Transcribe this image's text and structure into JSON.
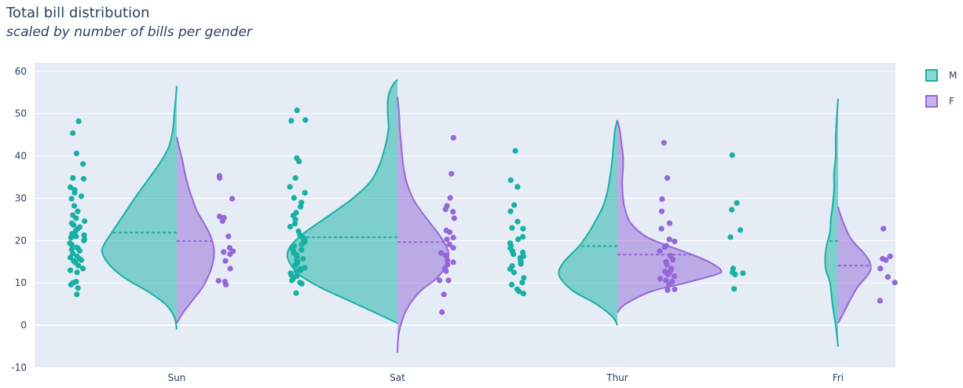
{
  "title": "Total bill distribution",
  "subtitle": "scaled by number of bills per gender",
  "colors": {
    "M": "#17b0a3",
    "F": "#9467d8",
    "plot_bg": "#e5ecf6",
    "grid": "#ffffff"
  },
  "chart_data": {
    "type": "violin",
    "title": "Total bill distribution",
    "subtitle": "scaled by number of bills per gender",
    "xlabel": "",
    "ylabel": "",
    "categories": [
      "Sun",
      "Sat",
      "Thur",
      "Fri"
    ],
    "ylim": [
      -10,
      62
    ],
    "yticks": [
      -10,
      0,
      10,
      20,
      30,
      40,
      50,
      60
    ],
    "grid": true,
    "legend": {
      "placement": "top-right",
      "entries": [
        "M",
        "F"
      ]
    },
    "series": [
      {
        "name": "M",
        "side": "negative",
        "means": [
          21.9,
          20.8,
          18.7,
          19.9
        ],
        "violins": [
          {
            "ymin": -1,
            "ymax": 56.5,
            "density": [
              [
                -1,
                0
              ],
              [
                2,
                3
              ],
              [
                5,
                14
              ],
              [
                8,
                36
              ],
              [
                11,
                63
              ],
              [
                14,
                82
              ],
              [
                17,
                92
              ],
              [
                19,
                90
              ],
              [
                22,
                80
              ],
              [
                26,
                66
              ],
              [
                30,
                52
              ],
              [
                34,
                37
              ],
              [
                38,
                22
              ],
              [
                42,
                10
              ],
              [
                46,
                5
              ],
              [
                50,
                3
              ],
              [
                54,
                1
              ],
              [
                56.5,
                0
              ]
            ]
          },
          {
            "ymin": 0.5,
            "ymax": 58,
            "density": [
              [
                0.5,
                0
              ],
              [
                3,
                28
              ],
              [
                6,
                62
              ],
              [
                9,
                96
              ],
              [
                12,
                122
              ],
              [
                15,
                134
              ],
              [
                17,
                136
              ],
              [
                19,
                131
              ],
              [
                22,
                114
              ],
              [
                26,
                84
              ],
              [
                30,
                55
              ],
              [
                34,
                33
              ],
              [
                38,
                22
              ],
              [
                41,
                17
              ],
              [
                44,
                13
              ],
              [
                47,
                11
              ],
              [
                50,
                12
              ],
              [
                53,
                12
              ],
              [
                55,
                10
              ],
              [
                57,
                5
              ],
              [
                58,
                0
              ]
            ]
          },
          {
            "ymin": 0,
            "ymax": 48.5,
            "density": [
              [
                0,
                0
              ],
              [
                2,
                6
              ],
              [
                5,
                26
              ],
              [
                8,
                54
              ],
              [
                11,
                70
              ],
              [
                13,
                72
              ],
              [
                15,
                66
              ],
              [
                17,
                56
              ],
              [
                19,
                46
              ],
              [
                22,
                35
              ],
              [
                25,
                26
              ],
              [
                28,
                18
              ],
              [
                31,
                13
              ],
              [
                34,
                10
              ],
              [
                38,
                7
              ],
              [
                42,
                5
              ],
              [
                46,
                3
              ],
              [
                48.5,
                0
              ]
            ]
          },
          {
            "ymin": -5,
            "ymax": 53.5,
            "density": [
              [
                -5,
                0
              ],
              [
                0,
                3
              ],
              [
                5,
                7
              ],
              [
                10,
                10
              ],
              [
                13,
                15
              ],
              [
                16,
                16
              ],
              [
                19,
                14
              ],
              [
                22,
                10
              ],
              [
                25,
                9
              ],
              [
                28,
                7
              ],
              [
                32,
                5
              ],
              [
                36,
                5
              ],
              [
                40,
                3
              ],
              [
                44,
                3
              ],
              [
                48,
                2
              ],
              [
                53.5,
                0
              ]
            ]
          }
        ],
        "points": [
          [
            7.3,
            8.8,
            9.6,
            10.0,
            10.3,
            12.5,
            13.0,
            13.4,
            14.1,
            14.8,
            15.2,
            15.4,
            15.7,
            16.0,
            16.3,
            17.0,
            17.6,
            17.9,
            18.2,
            18.4,
            19.0,
            19.4,
            20.0,
            20.3,
            20.7,
            21.0,
            21.3,
            21.6,
            22.3,
            22.8,
            23.2,
            23.7,
            24.1,
            24.6,
            25.3,
            26.0,
            26.9,
            28.2,
            29.9,
            30.5,
            31.3,
            32.0,
            32.6,
            34.6,
            34.8,
            38.1,
            40.6,
            45.4,
            48.2
          ],
          [
            7.6,
            9.8,
            10.1,
            10.6,
            11.1,
            11.6,
            11.9,
            12.3,
            12.7,
            13.0,
            13.3,
            13.6,
            14.1,
            14.6,
            15.0,
            15.4,
            15.7,
            16.1,
            16.6,
            17.0,
            17.5,
            17.8,
            18.3,
            18.7,
            19.1,
            19.5,
            19.9,
            20.3,
            20.6,
            21.0,
            21.4,
            22.2,
            23.3,
            24.0,
            25.0,
            25.9,
            26.6,
            28.0,
            29.0,
            30.1,
            31.3,
            32.7,
            34.8,
            38.7,
            39.5,
            48.3,
            48.5,
            50.8
          ],
          [
            7.5,
            8.0,
            8.5,
            9.6,
            10.1,
            11.2,
            12.5,
            13.3,
            14.0,
            14.5,
            15.1,
            15.9,
            16.3,
            16.8,
            17.2,
            17.5,
            18.2,
            18.8,
            19.4,
            20.3,
            20.9,
            22.8,
            23.0,
            24.5,
            26.9,
            28.4,
            32.7,
            34.3,
            41.2
          ],
          [
            8.6,
            12.0,
            12.3,
            12.5,
            13.4,
            20.8,
            22.5,
            27.3,
            28.9,
            40.2
          ]
        ]
      },
      {
        "name": "F",
        "side": "positive",
        "means": [
          19.9,
          19.7,
          16.7,
          14.1
        ],
        "violins": [
          {
            "ymin": 0.5,
            "ymax": 44.5,
            "density": [
              [
                0.5,
                0
              ],
              [
                3,
                8
              ],
              [
                6,
                20
              ],
              [
                9,
                32
              ],
              [
                12,
                40
              ],
              [
                15,
                45
              ],
              [
                18,
                46
              ],
              [
                21,
                42
              ],
              [
                24,
                34
              ],
              [
                27,
                25
              ],
              [
                30,
                19
              ],
              [
                33,
                14
              ],
              [
                36,
                10
              ],
              [
                39,
                7
              ],
              [
                42,
                3
              ],
              [
                44.5,
                0
              ]
            ]
          },
          {
            "ymin": -6.5,
            "ymax": 54,
            "density": [
              [
                -6.5,
                0
              ],
              [
                -3,
                1
              ],
              [
                0,
                4
              ],
              [
                4,
                12
              ],
              [
                8,
                28
              ],
              [
                11,
                48
              ],
              [
                14,
                60
              ],
              [
                16,
                63
              ],
              [
                18,
                62
              ],
              [
                21,
                53
              ],
              [
                24,
                41
              ],
              [
                27,
                29
              ],
              [
                30,
                19
              ],
              [
                34,
                11
              ],
              [
                38,
                7
              ],
              [
                42,
                5
              ],
              [
                46,
                3
              ],
              [
                50,
                2
              ],
              [
                54,
                0
              ]
            ]
          },
          {
            "ymin": 3,
            "ymax": 48.5,
            "density": [
              [
                3,
                0
              ],
              [
                5,
                10
              ],
              [
                8,
                42
              ],
              [
                10,
                84
              ],
              [
                12,
                122
              ],
              [
                13,
                128
              ],
              [
                15,
                113
              ],
              [
                17,
                88
              ],
              [
                19,
                59
              ],
              [
                21,
                35
              ],
              [
                24,
                17
              ],
              [
                27,
                10
              ],
              [
                30,
                7
              ],
              [
                34,
                6
              ],
              [
                37,
                7
              ],
              [
                40,
                7
              ],
              [
                43,
                5
              ],
              [
                46,
                3
              ],
              [
                48.5,
                0
              ]
            ]
          },
          {
            "ymin": 0.5,
            "ymax": 28,
            "density": [
              [
                0.5,
                0
              ],
              [
                3,
                7
              ],
              [
                6,
                15
              ],
              [
                9,
                24
              ],
              [
                11,
                33
              ],
              [
                13,
                40
              ],
              [
                15,
                39
              ],
              [
                17,
                32
              ],
              [
                19,
                22
              ],
              [
                21,
                14
              ],
              [
                24,
                7
              ],
              [
                26,
                3
              ],
              [
                28,
                0
              ]
            ]
          }
        ],
        "points": [
          [
            9.6,
            10.3,
            10.5,
            13.4,
            15.2,
            16.8,
            17.3,
            17.5,
            18.3,
            21.0,
            24.6,
            25.4,
            25.7,
            29.9,
            34.8,
            35.3
          ],
          [
            3.1,
            7.3,
            10.6,
            10.6,
            12.8,
            13.4,
            14.3,
            14.9,
            15.3,
            16.5,
            17.1,
            18.3,
            19.1,
            20.3,
            20.7,
            22.0,
            22.4,
            25.3,
            26.8,
            27.4,
            28.2,
            30.1,
            35.8,
            44.3
          ],
          [
            8.3,
            8.5,
            9.5,
            10.3,
            10.6,
            11.0,
            11.6,
            12.0,
            12.4,
            12.7,
            13.0,
            13.4,
            14.3,
            15.0,
            15.5,
            16.4,
            17.5,
            18.5,
            18.8,
            19.8,
            20.3,
            22.8,
            24.1,
            26.9,
            29.8,
            34.8,
            43.1
          ],
          [
            5.8,
            10.1,
            11.4,
            13.4,
            15.4,
            15.7,
            16.3,
            22.8
          ]
        ]
      }
    ]
  }
}
